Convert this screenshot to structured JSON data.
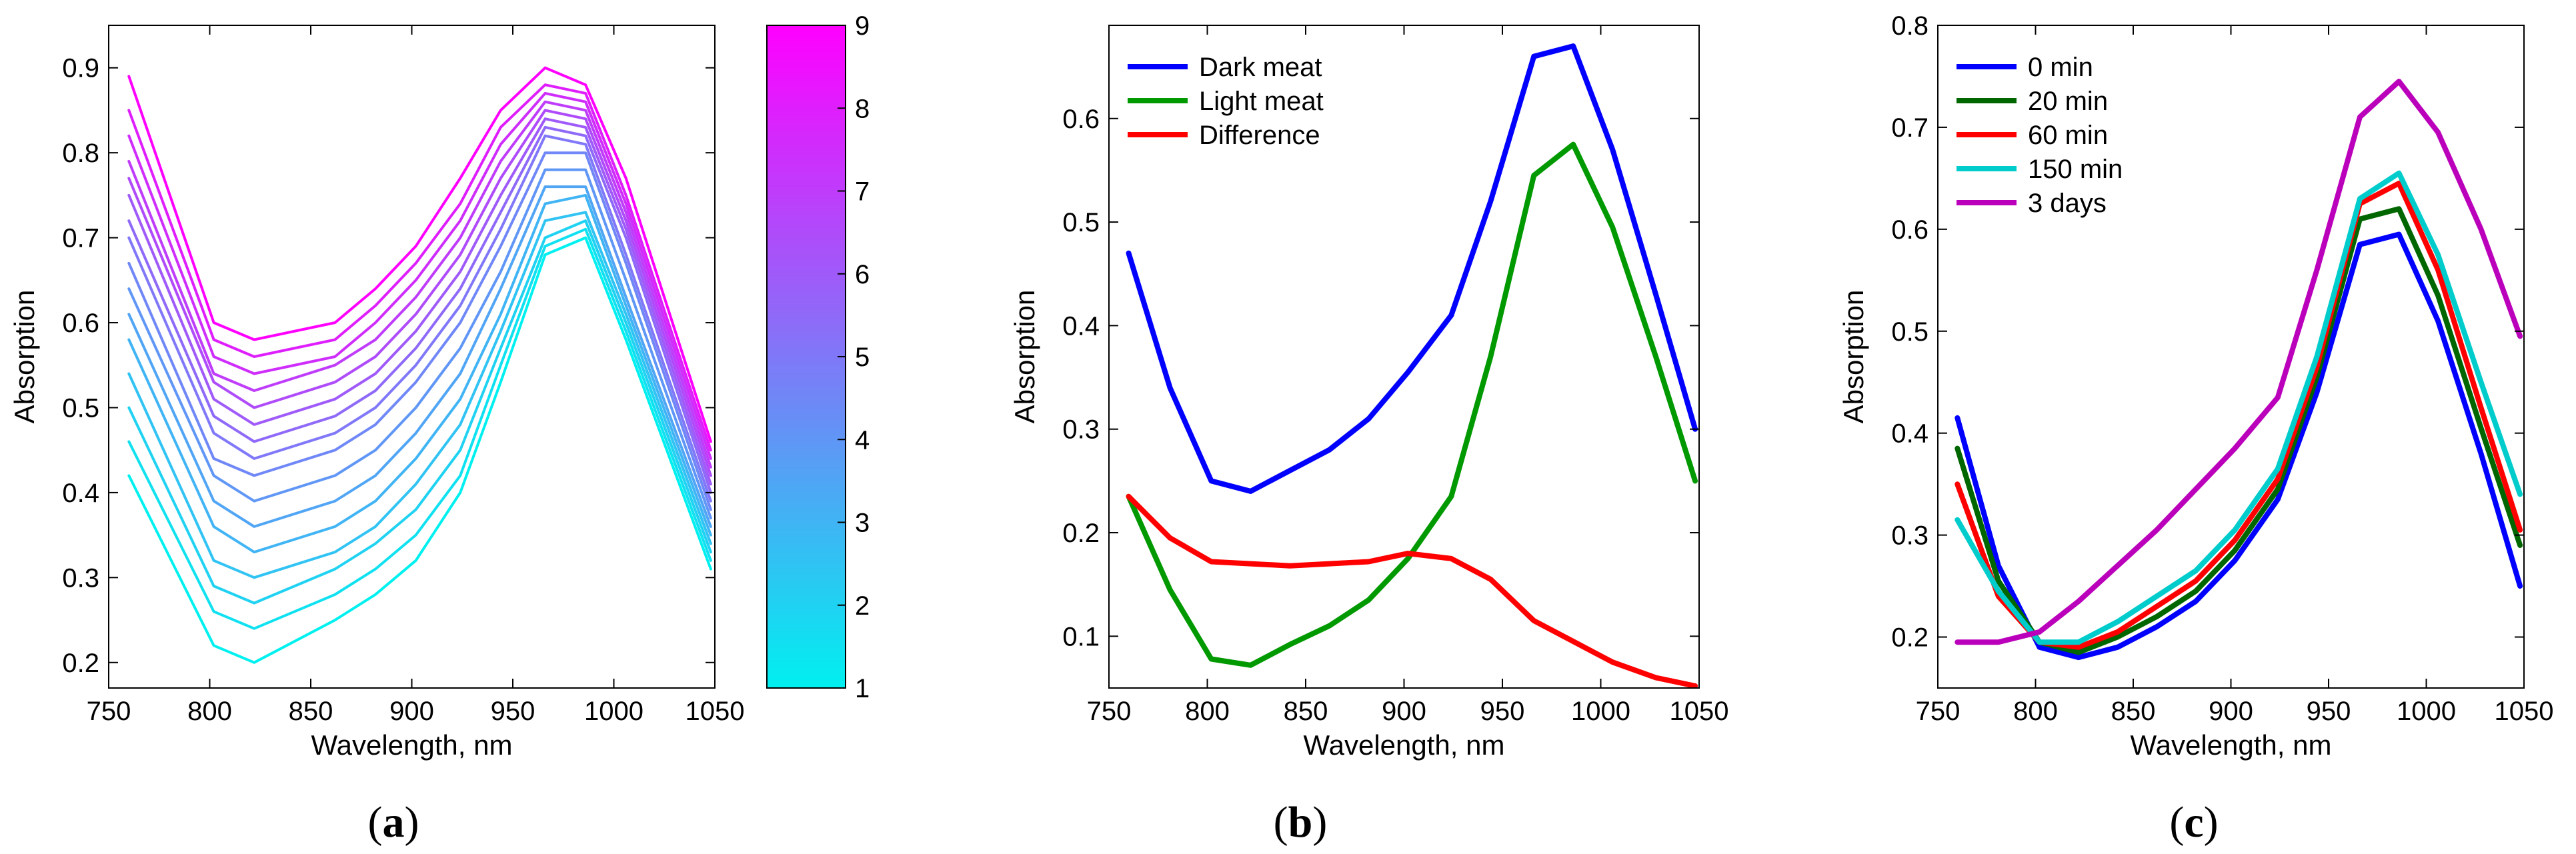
{
  "chart_data": [
    {
      "type": "line",
      "panel_label": "a",
      "xlabel": "Wavelength, nm",
      "ylabel": "Absorption",
      "xlim": [
        750,
        1050
      ],
      "ylim": [
        0.17,
        0.95
      ],
      "xticks": [
        "750",
        "800",
        "850",
        "900",
        "950",
        "1000",
        "1050"
      ],
      "yticks": [
        "0.2",
        "0.3",
        "0.4",
        "0.5",
        "0.6",
        "0.7",
        "0.8",
        "0.9"
      ],
      "x": [
        760,
        802,
        822,
        862,
        882,
        902,
        924,
        944,
        966,
        986,
        1006,
        1048
      ],
      "colormap": {
        "from": "#00f0f0",
        "to": "#ff00ff",
        "min": 1,
        "max": 9,
        "ticks": [
          "1",
          "2",
          "3",
          "4",
          "5",
          "6",
          "7",
          "8",
          "9"
        ]
      },
      "series": [
        {
          "level": 1.0,
          "values": [
            0.42,
            0.22,
            0.2,
            0.25,
            0.28,
            0.32,
            0.4,
            0.53,
            0.68,
            0.7,
            0.58,
            0.31
          ]
        },
        {
          "level": 1.5,
          "values": [
            0.46,
            0.26,
            0.24,
            0.28,
            0.31,
            0.35,
            0.42,
            0.55,
            0.69,
            0.71,
            0.59,
            0.32
          ]
        },
        {
          "level": 2.0,
          "values": [
            0.5,
            0.29,
            0.27,
            0.31,
            0.34,
            0.38,
            0.45,
            0.57,
            0.7,
            0.72,
            0.6,
            0.33
          ]
        },
        {
          "level": 2.5,
          "values": [
            0.54,
            0.32,
            0.3,
            0.33,
            0.36,
            0.41,
            0.48,
            0.59,
            0.72,
            0.73,
            0.61,
            0.34
          ]
        },
        {
          "level": 3.0,
          "values": [
            0.58,
            0.36,
            0.33,
            0.36,
            0.39,
            0.44,
            0.51,
            0.61,
            0.74,
            0.75,
            0.62,
            0.35
          ]
        },
        {
          "level": 3.5,
          "values": [
            0.61,
            0.39,
            0.36,
            0.39,
            0.42,
            0.47,
            0.54,
            0.64,
            0.76,
            0.76,
            0.63,
            0.36
          ]
        },
        {
          "level": 4.0,
          "values": [
            0.64,
            0.42,
            0.39,
            0.42,
            0.45,
            0.5,
            0.57,
            0.66,
            0.78,
            0.78,
            0.65,
            0.37
          ]
        },
        {
          "level": 4.5,
          "values": [
            0.67,
            0.44,
            0.42,
            0.45,
            0.48,
            0.53,
            0.6,
            0.69,
            0.8,
            0.8,
            0.67,
            0.38
          ]
        },
        {
          "level": 5.0,
          "values": [
            0.7,
            0.47,
            0.44,
            0.47,
            0.5,
            0.55,
            0.62,
            0.71,
            0.82,
            0.81,
            0.68,
            0.39
          ]
        },
        {
          "level": 5.5,
          "values": [
            0.72,
            0.49,
            0.46,
            0.49,
            0.52,
            0.57,
            0.64,
            0.73,
            0.83,
            0.82,
            0.7,
            0.4
          ]
        },
        {
          "level": 6.0,
          "values": [
            0.75,
            0.51,
            0.48,
            0.51,
            0.54,
            0.59,
            0.66,
            0.75,
            0.84,
            0.83,
            0.71,
            0.41
          ]
        },
        {
          "level": 6.5,
          "values": [
            0.77,
            0.53,
            0.5,
            0.53,
            0.56,
            0.61,
            0.68,
            0.77,
            0.85,
            0.84,
            0.72,
            0.42
          ]
        },
        {
          "level": 7.0,
          "values": [
            0.79,
            0.54,
            0.52,
            0.55,
            0.58,
            0.63,
            0.7,
            0.79,
            0.86,
            0.85,
            0.73,
            0.43
          ]
        },
        {
          "level": 7.5,
          "values": [
            0.82,
            0.56,
            0.54,
            0.56,
            0.6,
            0.65,
            0.72,
            0.81,
            0.87,
            0.86,
            0.74,
            0.44
          ]
        },
        {
          "level": 8.0,
          "values": [
            0.85,
            0.58,
            0.56,
            0.58,
            0.62,
            0.67,
            0.74,
            0.83,
            0.88,
            0.87,
            0.75,
            0.45
          ]
        },
        {
          "level": 9.0,
          "values": [
            0.89,
            0.6,
            0.58,
            0.6,
            0.64,
            0.69,
            0.77,
            0.85,
            0.9,
            0.88,
            0.77,
            0.46
          ]
        }
      ]
    },
    {
      "type": "line",
      "panel_label": "b",
      "xlabel": "Wavelength, nm",
      "ylabel": "Absorption",
      "xlim": [
        750,
        1050
      ],
      "ylim": [
        0.05,
        0.69
      ],
      "xticks": [
        "750",
        "800",
        "850",
        "900",
        "950",
        "1000",
        "1050"
      ],
      "yticks": [
        "0.1",
        "0.2",
        "0.3",
        "0.4",
        "0.5",
        "0.6"
      ],
      "x": [
        760,
        781,
        802,
        822,
        842,
        862,
        882,
        902,
        924,
        944,
        966,
        986,
        1006,
        1028,
        1048
      ],
      "series": [
        {
          "name": "Dark meat",
          "color": "#0000ff",
          "values": [
            0.47,
            0.34,
            0.25,
            0.24,
            0.26,
            0.28,
            0.31,
            0.355,
            0.41,
            0.52,
            0.66,
            0.67,
            0.57,
            0.43,
            0.3
          ]
        },
        {
          "name": "Light meat",
          "color": "#009900",
          "values": [
            0.235,
            0.145,
            0.078,
            0.072,
            0.092,
            0.11,
            0.135,
            0.175,
            0.235,
            0.37,
            0.545,
            0.575,
            0.495,
            0.37,
            0.25
          ]
        },
        {
          "name": "Difference",
          "color": "#ff0000",
          "values": [
            0.235,
            0.195,
            0.172,
            0.17,
            0.168,
            0.17,
            0.172,
            0.18,
            0.175,
            0.155,
            0.115,
            0.095,
            0.075,
            0.06,
            0.052
          ]
        }
      ],
      "legend": "top-left"
    },
    {
      "type": "line",
      "panel_label": "c",
      "xlabel": "Wavelength, nm",
      "ylabel": "Absorption",
      "xlim": [
        750,
        1050
      ],
      "ylim": [
        0.15,
        0.8
      ],
      "xticks": [
        "750",
        "800",
        "850",
        "900",
        "950",
        "1000",
        "1050"
      ],
      "yticks": [
        "0.2",
        "0.3",
        "0.4",
        "0.5",
        "0.6",
        "0.7",
        "0.8"
      ],
      "x": [
        760,
        781,
        802,
        822,
        842,
        862,
        882,
        902,
        924,
        944,
        966,
        986,
        1006,
        1028,
        1048
      ],
      "series": [
        {
          "name": "0 min",
          "color": "#0000ff",
          "values": [
            0.415,
            0.27,
            0.19,
            0.18,
            0.19,
            0.21,
            0.235,
            0.275,
            0.335,
            0.44,
            0.585,
            0.595,
            0.51,
            0.38,
            0.25
          ]
        },
        {
          "name": "20 min",
          "color": "#006600",
          "values": [
            0.385,
            0.255,
            0.195,
            0.185,
            0.2,
            0.22,
            0.245,
            0.285,
            0.345,
            0.455,
            0.61,
            0.62,
            0.535,
            0.405,
            0.29
          ]
        },
        {
          "name": "60 min",
          "color": "#ff0000",
          "values": [
            0.35,
            0.24,
            0.195,
            0.19,
            0.205,
            0.23,
            0.255,
            0.295,
            0.355,
            0.465,
            0.625,
            0.645,
            0.56,
            0.425,
            0.305
          ]
        },
        {
          "name": "150 min",
          "color": "#00cccc",
          "values": [
            0.315,
            0.245,
            0.195,
            0.195,
            0.215,
            0.24,
            0.265,
            0.305,
            0.365,
            0.475,
            0.63,
            0.655,
            0.575,
            0.45,
            0.34
          ]
        },
        {
          "name": "3 days",
          "color": "#bb00bb",
          "values": [
            0.195,
            0.195,
            0.205,
            0.235,
            0.27,
            0.305,
            0.345,
            0.385,
            0.435,
            0.56,
            0.71,
            0.745,
            0.695,
            0.6,
            0.495
          ]
        }
      ],
      "legend": "top-left"
    }
  ]
}
